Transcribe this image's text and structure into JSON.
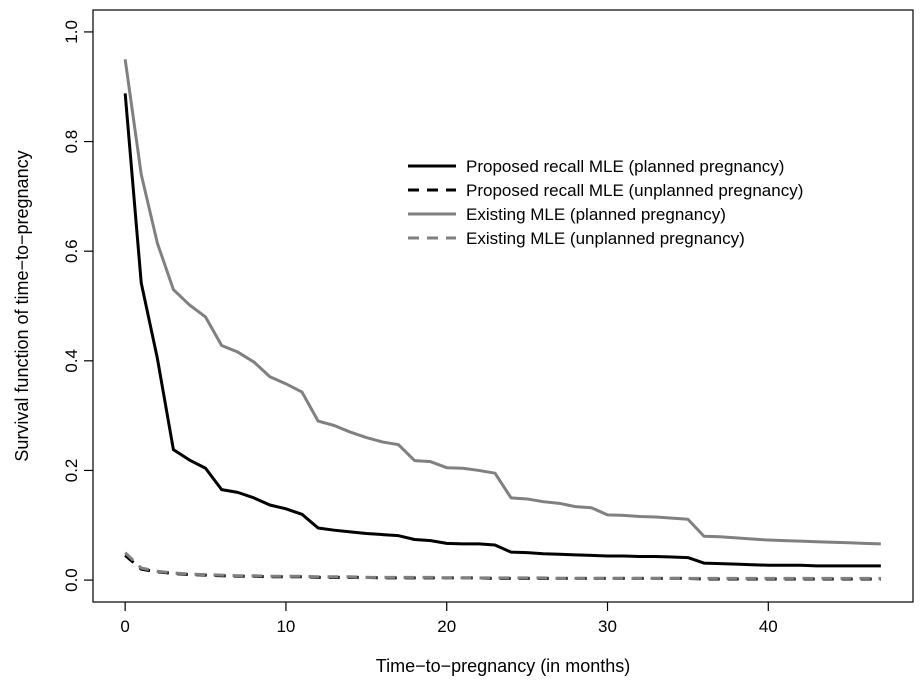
{
  "chart_data": {
    "type": "line",
    "title": "",
    "xlabel": "Time−to−pregnancy (in months)",
    "ylabel": "Survival function of time−to−pregnancy",
    "xlim": [
      -2,
      49
    ],
    "ylim": [
      -0.04,
      1.04
    ],
    "xticks": [
      0,
      10,
      20,
      30,
      40
    ],
    "yticks": [
      0.0,
      0.2,
      0.4,
      0.6,
      0.8,
      1.0
    ],
    "xtick_labels": [
      "0",
      "10",
      "20",
      "30",
      "40"
    ],
    "ytick_labels": [
      "0.0",
      "0.2",
      "0.4",
      "0.6",
      "0.8",
      "1.0"
    ],
    "grid": false,
    "legend_position": "top-right",
    "x": [
      0,
      1,
      2,
      3,
      4,
      5,
      6,
      7,
      8,
      9,
      10,
      11,
      12,
      13,
      14,
      15,
      16,
      17,
      18,
      19,
      20,
      21,
      22,
      23,
      24,
      25,
      26,
      27,
      28,
      29,
      30,
      31,
      32,
      33,
      34,
      35,
      36,
      37,
      38,
      39,
      40,
      41,
      42,
      43,
      44,
      45,
      46,
      47
    ],
    "series": [
      {
        "name": "Proposed recall MLE (planned pregnancy)",
        "color": "#000000",
        "dash": "solid",
        "values": [
          0.888,
          0.542,
          0.405,
          0.238,
          0.219,
          0.204,
          0.165,
          0.16,
          0.15,
          0.137,
          0.13,
          0.12,
          0.095,
          0.091,
          0.088,
          0.085,
          0.083,
          0.081,
          0.074,
          0.072,
          0.067,
          0.066,
          0.066,
          0.064,
          0.051,
          0.05,
          0.048,
          0.047,
          0.046,
          0.045,
          0.044,
          0.044,
          0.043,
          0.043,
          0.042,
          0.041,
          0.031,
          0.03,
          0.029,
          0.028,
          0.027,
          0.027,
          0.027,
          0.026,
          0.026,
          0.026,
          0.026,
          0.026
        ]
      },
      {
        "name": "Proposed recall MLE (unplanned pregnancy)",
        "color": "#000000",
        "dash": "dashed",
        "values": [
          0.045,
          0.02,
          0.015,
          0.012,
          0.01,
          0.009,
          0.008,
          0.007,
          0.007,
          0.006,
          0.006,
          0.006,
          0.005,
          0.005,
          0.005,
          0.005,
          0.004,
          0.004,
          0.004,
          0.004,
          0.004,
          0.004,
          0.004,
          0.003,
          0.003,
          0.003,
          0.003,
          0.003,
          0.003,
          0.003,
          0.003,
          0.003,
          0.003,
          0.003,
          0.003,
          0.003,
          0.002,
          0.002,
          0.002,
          0.002,
          0.002,
          0.002,
          0.002,
          0.002,
          0.002,
          0.002,
          0.002,
          0.002
        ]
      },
      {
        "name": "Existing MLE (planned pregnancy)",
        "color": "#808080",
        "dash": "solid",
        "values": [
          0.95,
          0.74,
          0.615,
          0.53,
          0.502,
          0.48,
          0.428,
          0.416,
          0.398,
          0.371,
          0.358,
          0.343,
          0.29,
          0.282,
          0.27,
          0.26,
          0.252,
          0.247,
          0.218,
          0.216,
          0.205,
          0.204,
          0.2,
          0.195,
          0.15,
          0.148,
          0.143,
          0.14,
          0.134,
          0.132,
          0.119,
          0.118,
          0.116,
          0.115,
          0.113,
          0.111,
          0.08,
          0.079,
          0.077,
          0.075,
          0.073,
          0.072,
          0.071,
          0.07,
          0.069,
          0.068,
          0.067,
          0.066
        ]
      },
      {
        "name": "Existing MLE  (unplanned pregnancy)",
        "color": "#808080",
        "dash": "dashed",
        "values": [
          0.05,
          0.022,
          0.016,
          0.013,
          0.011,
          0.01,
          0.009,
          0.008,
          0.008,
          0.007,
          0.007,
          0.007,
          0.006,
          0.006,
          0.006,
          0.005,
          0.005,
          0.005,
          0.005,
          0.005,
          0.004,
          0.004,
          0.004,
          0.004,
          0.004,
          0.004,
          0.004,
          0.003,
          0.003,
          0.003,
          0.003,
          0.003,
          0.003,
          0.003,
          0.003,
          0.003,
          0.003,
          0.003,
          0.003,
          0.003,
          0.003,
          0.003,
          0.003,
          0.003,
          0.003,
          0.003,
          0.003,
          0.003
        ]
      }
    ]
  }
}
